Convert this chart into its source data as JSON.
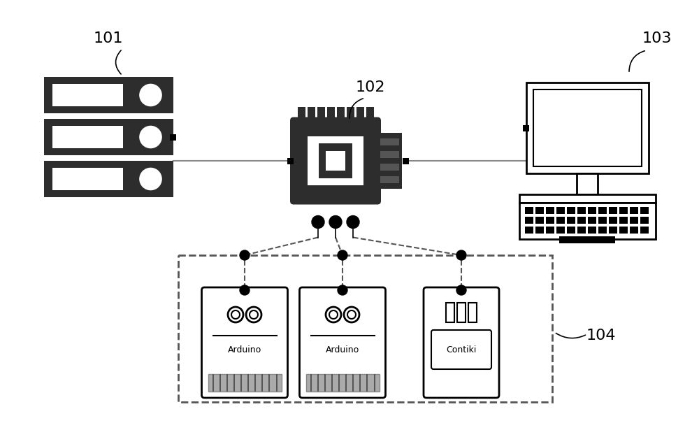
{
  "bg_color": "#ffffff",
  "label_101": "101",
  "label_102": "102",
  "label_103": "103",
  "label_104": "104",
  "line_color": "#888888",
  "dark_color": "#2d2d2d",
  "dashed_color": "#555555"
}
